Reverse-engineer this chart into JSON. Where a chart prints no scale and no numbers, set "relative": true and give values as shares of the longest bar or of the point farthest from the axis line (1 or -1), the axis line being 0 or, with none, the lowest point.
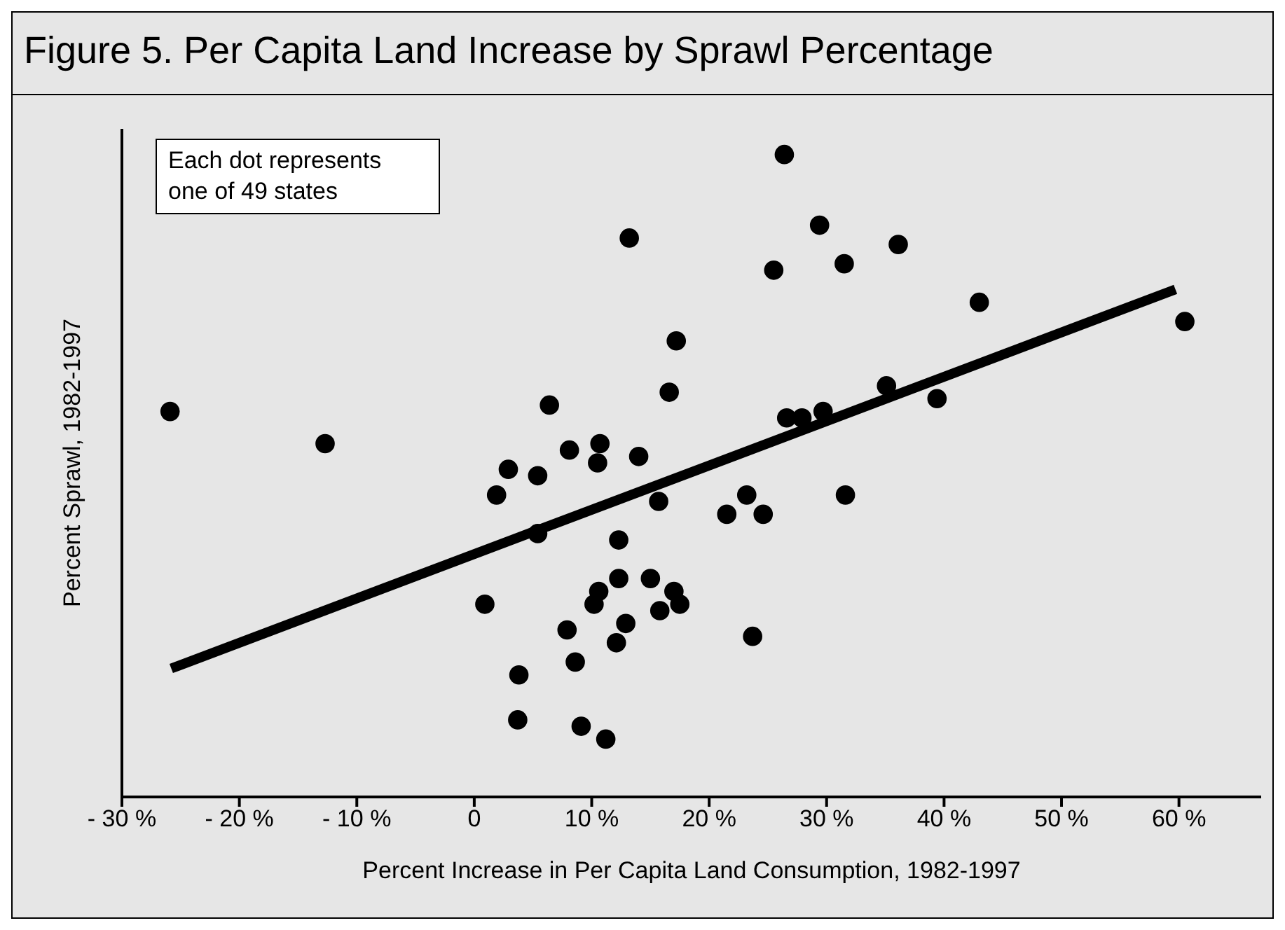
{
  "chart_data": {
    "type": "scatter",
    "title": "Figure 5. Per Capita Land Increase by Sprawl Percentage",
    "xlabel": "Percent Increase in Per Capita Land Consumption, 1982-1997",
    "ylabel": "Percent Sprawl, 1982-1997",
    "annotations": [
      "Each dot represents one of 49 states"
    ],
    "relative": true,
    "marker": "circle",
    "xlim": [
      -30,
      67
    ],
    "xticks": [
      {
        "value": -30,
        "label": "- 30 %"
      },
      {
        "value": -20,
        "label": "- 20 %"
      },
      {
        "value": -10,
        "label": "- 10 %"
      },
      0,
      {
        "value": 10,
        "label": "10 %"
      },
      {
        "value": 20,
        "label": "20 %"
      },
      {
        "value": 30,
        "label": "30 %"
      },
      {
        "value": 40,
        "label": "40 %"
      },
      {
        "value": 50,
        "label": "50 %"
      },
      {
        "value": 60,
        "label": "60 %"
      }
    ],
    "series": [
      {
        "color": "#000000",
        "x": [
          13.2,
          17.2,
          16.6,
          -25.9,
          -12.7,
          6.4,
          10.7,
          8.1,
          10.5,
          14.0,
          2.9,
          5.4,
          1.9,
          26.4,
          29.4,
          25.5,
          31.5,
          36.1,
          43.0,
          60.5,
          35.1,
          39.4,
          29.7,
          27.9,
          26.6,
          23.2,
          21.5,
          24.6,
          31.6,
          23.7,
          15.7,
          5.4,
          12.3,
          12.3,
          15.0,
          10.6,
          10.2,
          0.9,
          17.0,
          17.5,
          15.8,
          12.9,
          7.9,
          12.1,
          8.6,
          3.8,
          3.7,
          9.1,
          11.2
        ],
        "values": [
          0.87,
          0.71,
          0.63,
          0.6,
          0.55,
          0.61,
          0.55,
          0.54,
          0.52,
          0.53,
          0.51,
          0.5,
          0.47,
          1.0,
          0.89,
          0.82,
          0.83,
          0.86,
          0.77,
          0.74,
          0.64,
          0.62,
          0.6,
          0.59,
          0.59,
          0.47,
          0.44,
          0.44,
          0.47,
          0.25,
          0.46,
          0.41,
          0.4,
          0.34,
          0.34,
          0.32,
          0.3,
          0.3,
          0.32,
          0.3,
          0.29,
          0.27,
          0.26,
          0.24,
          0.21,
          0.19,
          0.12,
          0.11,
          0.09
        ]
      },
      {
        "type": "line",
        "color": "#000000",
        "marker": "none",
        "line_style": "solid",
        "x": [
          -25.8,
          59.7
        ],
        "values": [
          0.2,
          0.79
        ]
      }
    ]
  }
}
